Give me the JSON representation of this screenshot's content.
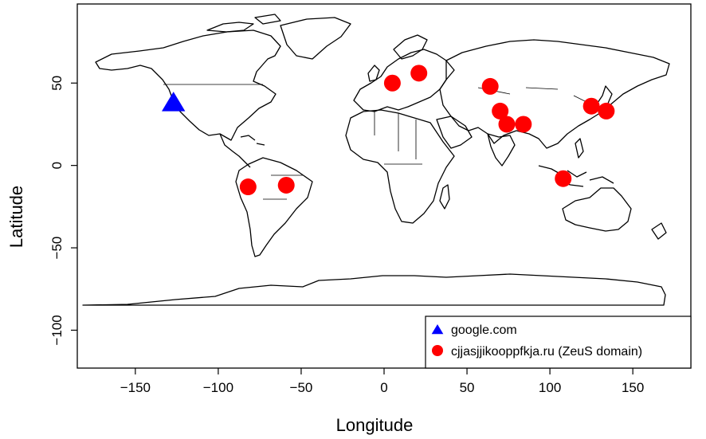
{
  "chart_data": {
    "type": "scatter",
    "title": "",
    "xlabel": "Longitude",
    "ylabel": "Latitude",
    "xlim": [
      -185,
      185
    ],
    "ylim": [
      -123,
      98
    ],
    "x_ticks": [
      -150,
      -100,
      -50,
      0,
      50,
      100,
      150
    ],
    "y_ticks": [
      -100,
      -50,
      0,
      50
    ],
    "x_tick_labels": [
      "−150",
      "−100",
      "−50",
      "0",
      "50",
      "100",
      "150"
    ],
    "y_tick_labels": [
      "−100",
      "−50",
      "0",
      "50"
    ],
    "grid": false,
    "legend_position": "bottom-right",
    "series": [
      {
        "name": "google.com",
        "marker": "triangle",
        "color": "#0000ff",
        "points": [
          [
            -127,
            38
          ]
        ]
      },
      {
        "name": "cjjasjjikooppfkja.ru (ZeuS domain)",
        "marker": "circle",
        "color": "#ff0000",
        "points": [
          [
            5,
            50
          ],
          [
            21,
            56
          ],
          [
            64,
            48
          ],
          [
            70,
            33
          ],
          [
            74,
            25
          ],
          [
            84,
            25
          ],
          [
            125,
            36
          ],
          [
            134,
            33
          ],
          [
            108,
            -8
          ],
          [
            -82,
            -13
          ],
          [
            -59,
            -12
          ]
        ]
      }
    ]
  }
}
